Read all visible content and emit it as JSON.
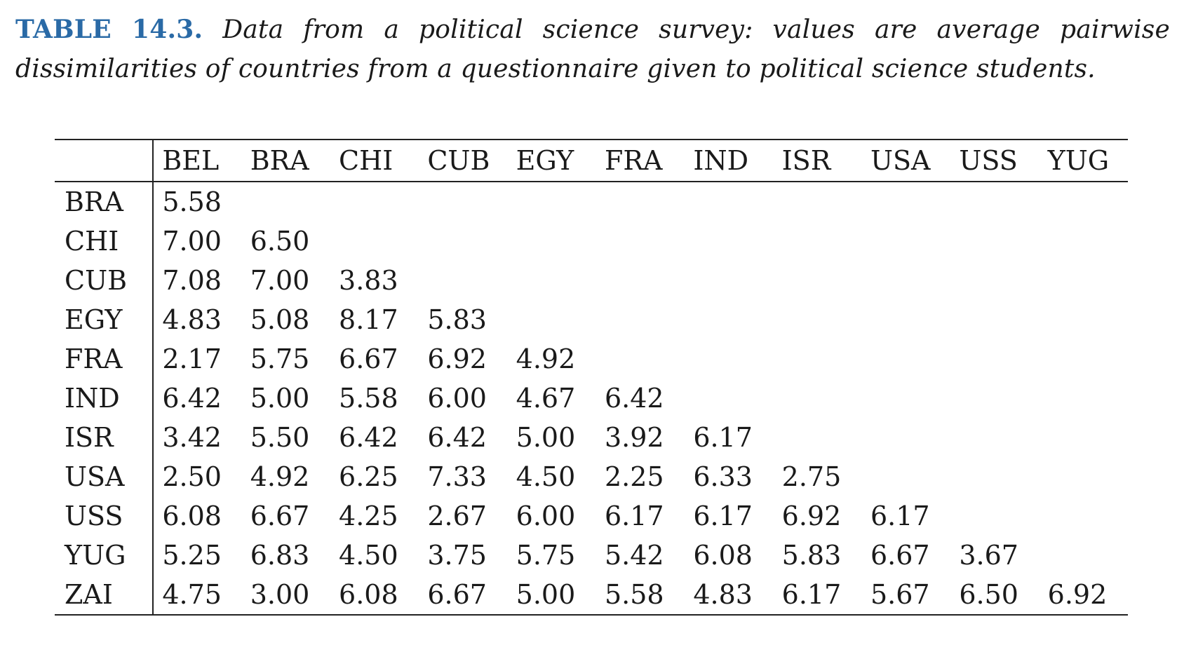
{
  "caption": {
    "label": "TABLE 14.3.",
    "text": "Data from a political science survey: values are average pairwise dissimilarities of countries from a questionnaire given to political science students."
  },
  "table": {
    "columns": [
      "BEL",
      "BRA",
      "CHI",
      "CUB",
      "EGY",
      "FRA",
      "IND",
      "ISR",
      "USA",
      "USS",
      "YUG"
    ],
    "rows": [
      {
        "label": "BRA",
        "values": [
          "5.58"
        ]
      },
      {
        "label": "CHI",
        "values": [
          "7.00",
          "6.50"
        ]
      },
      {
        "label": "CUB",
        "values": [
          "7.08",
          "7.00",
          "3.83"
        ]
      },
      {
        "label": "EGY",
        "values": [
          "4.83",
          "5.08",
          "8.17",
          "5.83"
        ]
      },
      {
        "label": "FRA",
        "values": [
          "2.17",
          "5.75",
          "6.67",
          "6.92",
          "4.92"
        ]
      },
      {
        "label": "IND",
        "values": [
          "6.42",
          "5.00",
          "5.58",
          "6.00",
          "4.67",
          "6.42"
        ]
      },
      {
        "label": "ISR",
        "values": [
          "3.42",
          "5.50",
          "6.42",
          "6.42",
          "5.00",
          "3.92",
          "6.17"
        ]
      },
      {
        "label": "USA",
        "values": [
          "2.50",
          "4.92",
          "6.25",
          "7.33",
          "4.50",
          "2.25",
          "6.33",
          "2.75"
        ]
      },
      {
        "label": "USS",
        "values": [
          "6.08",
          "6.67",
          "4.25",
          "2.67",
          "6.00",
          "6.17",
          "6.17",
          "6.92",
          "6.17"
        ]
      },
      {
        "label": "YUG",
        "values": [
          "5.25",
          "6.83",
          "4.50",
          "3.75",
          "5.75",
          "5.42",
          "6.08",
          "5.83",
          "6.67",
          "3.67"
        ]
      },
      {
        "label": "ZAI",
        "values": [
          "4.75",
          "3.00",
          "6.08",
          "6.67",
          "5.00",
          "5.58",
          "4.83",
          "6.17",
          "5.67",
          "6.50",
          "6.92"
        ]
      }
    ]
  },
  "colors": {
    "caption_label": "#2a6aa6",
    "text": "#1a1a1a",
    "rule": "#222222"
  }
}
